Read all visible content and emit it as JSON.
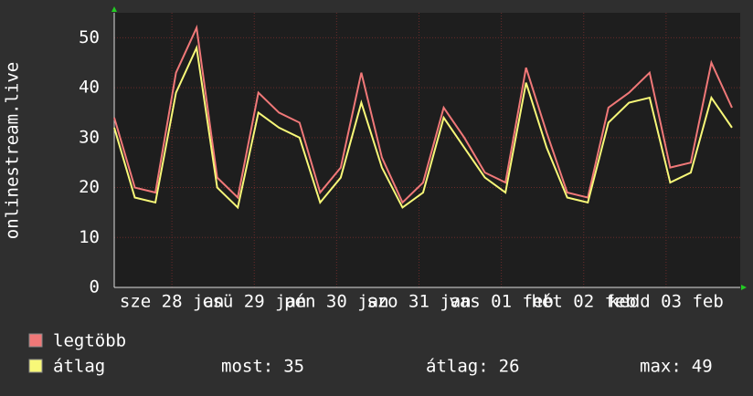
{
  "chart_data": {
    "type": "line",
    "y_label": "onlinestream.live",
    "x": [
      0,
      0.25,
      0.5,
      0.75,
      1,
      1.25,
      1.5,
      1.75,
      2,
      2.25,
      2.5,
      2.75,
      3,
      3.25,
      3.5,
      3.75,
      4,
      4.25,
      4.5,
      4.75,
      5,
      5.25,
      5.5,
      5.75,
      6,
      6.25,
      6.5,
      6.75,
      7,
      7.25,
      7.5
    ],
    "series": [
      {
        "name": "legtöbb",
        "color": "#f07878",
        "values": [
          34,
          20,
          19,
          43,
          52,
          22,
          18,
          39,
          35,
          33,
          19,
          24,
          43,
          26,
          17,
          21,
          36,
          30,
          23,
          21,
          44,
          31,
          19,
          18,
          36,
          39,
          43,
          24,
          25,
          45,
          36
        ]
      },
      {
        "name": "átlag",
        "color": "#f8f878",
        "values": [
          32,
          18,
          17,
          39,
          48,
          20,
          16,
          35,
          32,
          30,
          17,
          22,
          37,
          24,
          16,
          19,
          34,
          28,
          22,
          19,
          41,
          28,
          18,
          17,
          33,
          37,
          38,
          21,
          23,
          38,
          32
        ]
      }
    ],
    "xlim": [
      0,
      7.6
    ],
    "xticks": [
      {
        "value": 0.7,
        "label": "sze 28 jan"
      },
      {
        "value": 1.7,
        "label": "csü 29 jan"
      },
      {
        "value": 2.7,
        "label": "pén 30 jan"
      },
      {
        "value": 3.7,
        "label": "szo 31 jan"
      },
      {
        "value": 4.7,
        "label": "vas 01 feb"
      },
      {
        "value": 5.7,
        "label": "hét 02 feb"
      },
      {
        "value": 6.7,
        "label": "kedd 03 feb"
      }
    ],
    "ylim": [
      0,
      55
    ],
    "yticks": [
      0,
      10,
      20,
      30,
      40,
      50
    ],
    "grid": true,
    "stats": [
      {
        "label": "most:",
        "value": 35
      },
      {
        "label": "átlag:",
        "value": 26
      },
      {
        "label": "max:",
        "value": 49
      }
    ]
  }
}
